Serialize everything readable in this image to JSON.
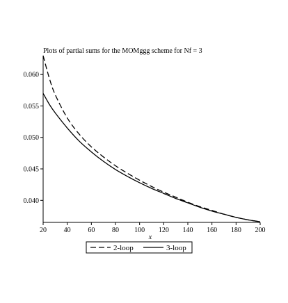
{
  "chart_data": {
    "type": "line",
    "title": "Plots of partial sums for the MOMggg scheme for Nf = 3",
    "xlabel": "x",
    "ylabel": "",
    "xlim": [
      20,
      200
    ],
    "ylim": [
      0.0365,
      0.063
    ],
    "xticks": [
      20,
      40,
      60,
      80,
      100,
      120,
      140,
      160,
      180,
      200
    ],
    "yticks": [
      0.04,
      0.045,
      0.05,
      0.055,
      0.06
    ],
    "ytick_labels": [
      "0.040",
      "0.045",
      "0.050",
      "0.055",
      "0.060"
    ],
    "grid": false,
    "legend_position": "bottom-center",
    "series": [
      {
        "name": "2-loop",
        "style": "dashed",
        "color": "#000000",
        "x": [
          20,
          25,
          30,
          40,
          50,
          60,
          70,
          80,
          90,
          100,
          110,
          120,
          130,
          140,
          150,
          160,
          170,
          180,
          190,
          200
        ],
        "y": [
          0.063,
          0.0595,
          0.0568,
          0.0531,
          0.0505,
          0.0485,
          0.0469,
          0.0455,
          0.0443,
          0.0432,
          0.0422,
          0.0413,
          0.0405,
          0.0397,
          0.039,
          0.0384,
          0.0378,
          0.0373,
          0.0369,
          0.0366
        ]
      },
      {
        "name": "3-loop",
        "style": "solid",
        "color": "#000000",
        "x": [
          20,
          25,
          30,
          40,
          50,
          60,
          70,
          80,
          90,
          100,
          110,
          120,
          130,
          140,
          150,
          160,
          170,
          180,
          190,
          200
        ],
        "y": [
          0.057,
          0.0553,
          0.0539,
          0.0515,
          0.0494,
          0.0477,
          0.0462,
          0.0449,
          0.0438,
          0.0428,
          0.0419,
          0.0411,
          0.0403,
          0.0396,
          0.0389,
          0.0383,
          0.0378,
          0.0373,
          0.0369,
          0.0366
        ]
      }
    ]
  }
}
